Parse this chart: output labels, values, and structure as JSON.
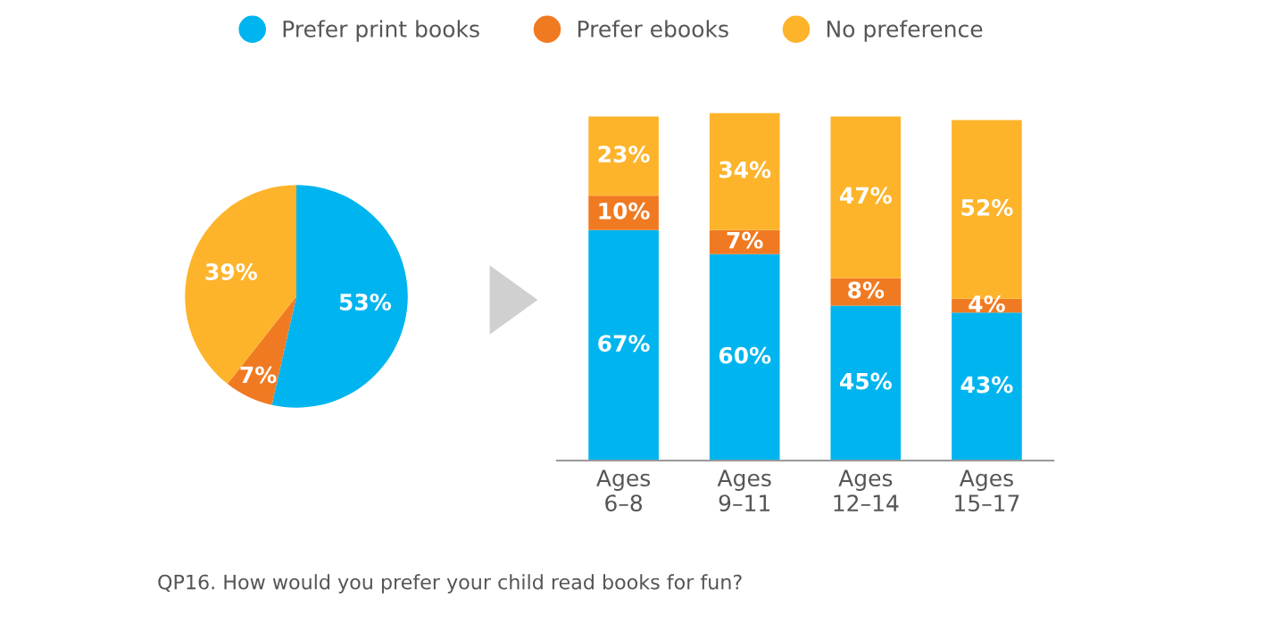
{
  "chart_data": [
    {
      "type": "pie",
      "categories": [
        "Prefer print books",
        "Prefer ebooks",
        "No preference"
      ],
      "values": [
        53,
        7,
        39
      ],
      "colors": [
        "#00b5ef",
        "#f07a22",
        "#fdb42b"
      ],
      "value_labels": [
        "53%",
        "7%",
        "39%"
      ],
      "legend": "top"
    },
    {
      "type": "bar",
      "stacked": true,
      "categories": [
        "Ages\n6–8",
        "Ages\n9–11",
        "Ages\n12–14",
        "Ages\n15–17"
      ],
      "tick_labels": "x",
      "annotations": [
        "QP16. How would you prefer your child read books for fun?"
      ],
      "series": [
        {
          "color": "#00b5ef",
          "values": [
            67,
            60,
            45,
            43
          ],
          "value_labels": [
            "67%",
            "60%",
            "45%",
            "43%"
          ]
        },
        {
          "color": "#f07a22",
          "values": [
            10,
            7,
            8,
            4
          ],
          "value_labels": [
            "10%",
            "7%",
            "8%",
            "4%"
          ]
        },
        {
          "color": "#fdb42b",
          "values": [
            23,
            34,
            47,
            52
          ],
          "value_labels": [
            "23%",
            "34%",
            "47%",
            "52%"
          ]
        }
      ]
    }
  ]
}
